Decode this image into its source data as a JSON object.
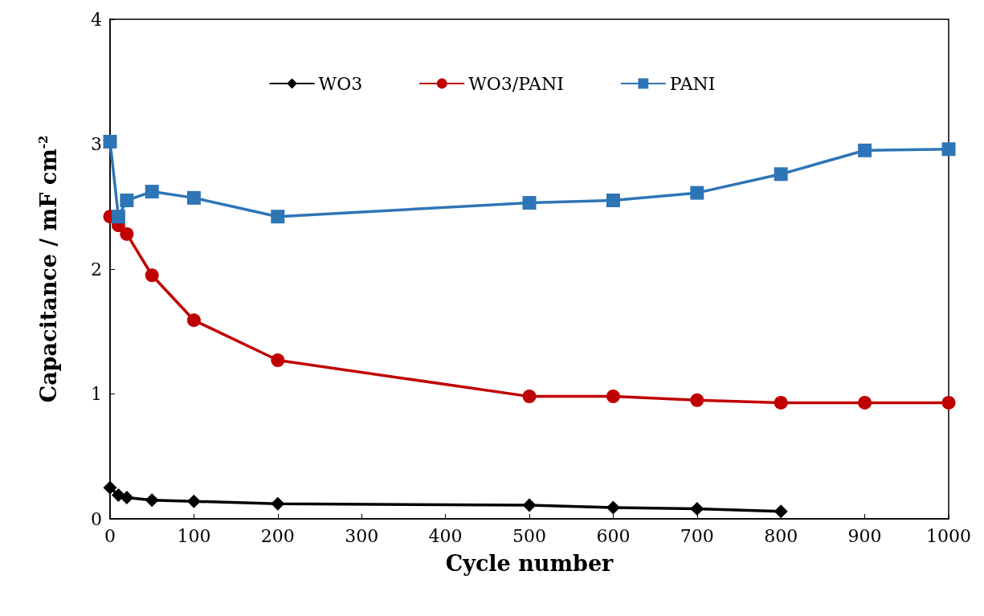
{
  "chart_data": {
    "type": "line",
    "xlabel": "Cycle number",
    "ylabel": "Capacitance / mF cm$^{-2}$",
    "xlim": [
      0,
      1000
    ],
    "xticks": [
      0,
      100,
      200,
      300,
      400,
      500,
      600,
      700,
      800,
      900,
      1000
    ],
    "ylim": [
      0,
      4
    ],
    "yticks": [
      0,
      1,
      2,
      3,
      4
    ],
    "grid": false,
    "legend": "top",
    "series": [
      {
        "name": "WO3",
        "color": "#000000",
        "marker": "diamond",
        "x": [
          0,
          10,
          20,
          50,
          100,
          200,
          500,
          600,
          700,
          800
        ],
        "values": [
          0.25,
          0.19,
          0.17,
          0.15,
          0.14,
          0.12,
          0.11,
          0.09,
          0.08,
          0.06
        ]
      },
      {
        "name": "WO3/PANI",
        "color": "#c00000",
        "marker": "circle",
        "x": [
          0,
          10,
          20,
          50,
          100,
          200,
          500,
          600,
          700,
          800,
          900,
          1000
        ],
        "values": [
          2.42,
          2.35,
          2.28,
          1.95,
          1.59,
          1.27,
          0.98,
          0.98,
          0.95,
          0.93,
          0.93,
          0.93
        ]
      },
      {
        "name": "PANI",
        "color": "#2e75b6",
        "marker": "square",
        "x": [
          0,
          10,
          20,
          50,
          100,
          200,
          500,
          600,
          700,
          800,
          900,
          1000
        ],
        "values": [
          3.02,
          2.42,
          2.55,
          2.62,
          2.57,
          2.42,
          2.53,
          2.55,
          2.61,
          2.76,
          2.95,
          2.96
        ]
      }
    ]
  }
}
